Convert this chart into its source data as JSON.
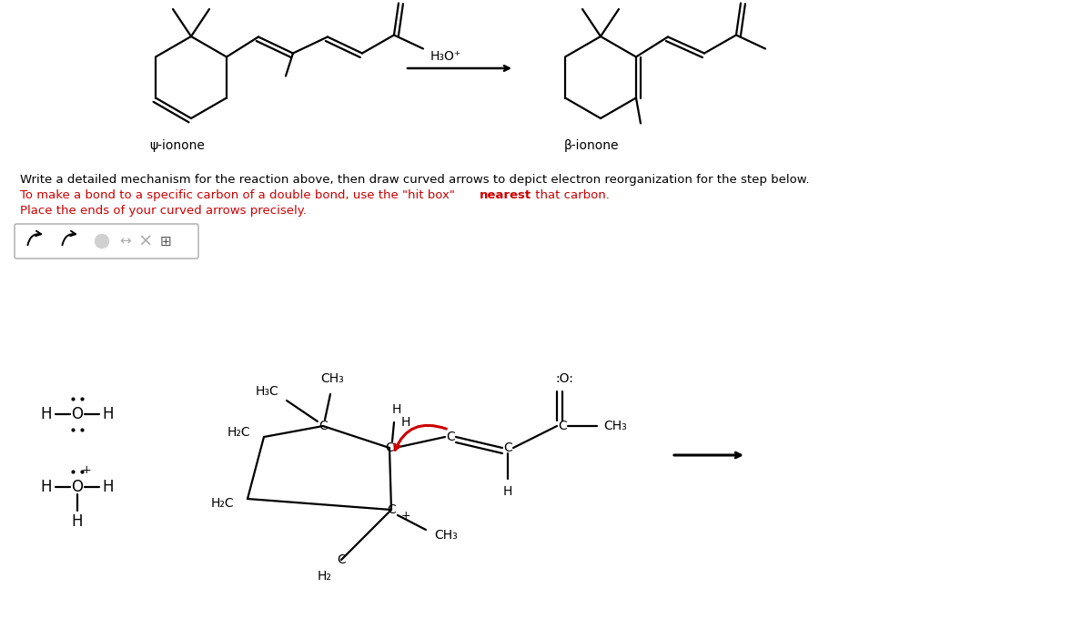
{
  "bg_color": "#ffffff",
  "line1": "Write a detailed mechanism for the reaction above, then draw curved arrows to depict electron reorganization for the step below.",
  "line2a": "To make a bond to a specific carbon of a double bond, use the \"hit box\" ",
  "line2b": "nearest",
  "line2c": " that carbon.",
  "line3": "Place the ends of your curved arrows precisely.",
  "psi_label": "ψ-ionone",
  "beta_label": "β-ionone",
  "h3o_plus": "H₃O⁺",
  "black": "#000000",
  "red": "#cc0000",
  "arrow_red": "#cc0000",
  "gray": "#999999",
  "light_gray": "#cccccc"
}
